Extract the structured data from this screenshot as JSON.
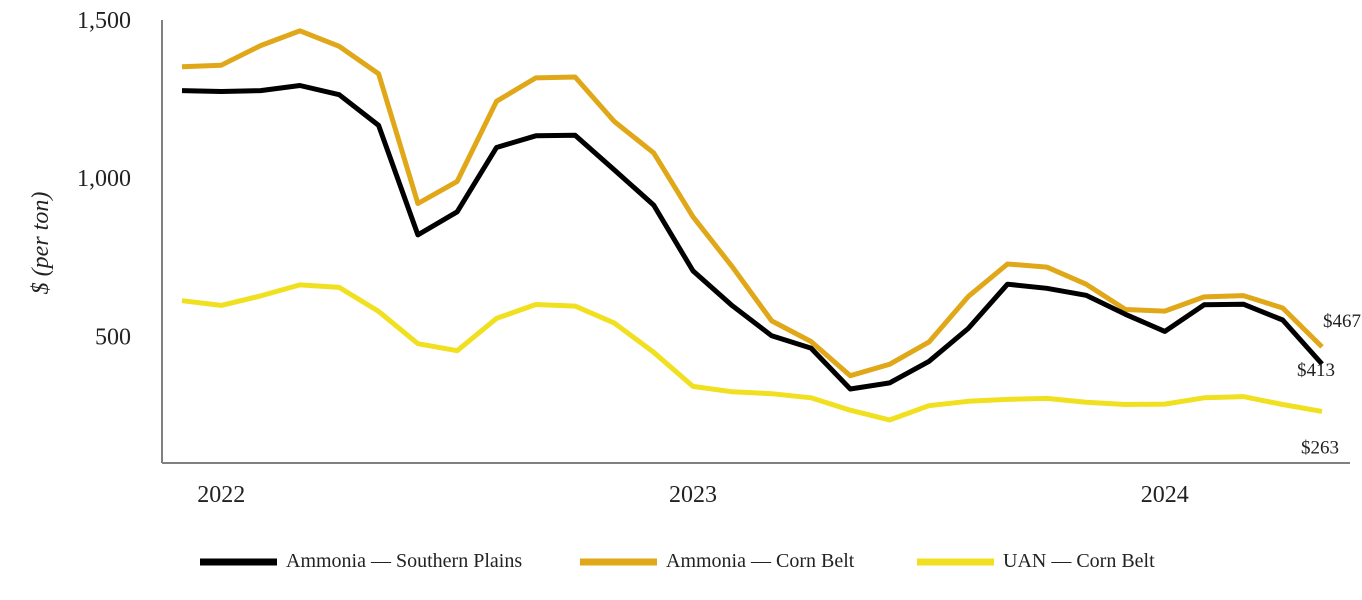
{
  "chart_data": {
    "type": "line",
    "title": "",
    "xlabel": "",
    "ylabel": "$ (per ton)",
    "ylim": [
      100,
      1500
    ],
    "y_ticks": [
      {
        "value": 500,
        "label": "500"
      },
      {
        "value": 1000,
        "label": "1,000"
      },
      {
        "value": 1500,
        "label": "1,500"
      }
    ],
    "x_ticks": [
      {
        "index": 1,
        "label": "2022"
      },
      {
        "index": 13,
        "label": "2023"
      },
      {
        "index": 25,
        "label": "2024"
      }
    ],
    "legend_position": "bottom",
    "series": [
      {
        "name": "Ammonia — Southern Plains",
        "color": "#000000",
        "values": [
          1277,
          1274,
          1277,
          1293,
          1264,
          1167,
          821,
          894,
          1097,
          1134,
          1136,
          1026,
          915,
          707,
          597,
          502,
          463,
          334,
          353,
          421,
          525,
          665,
          652,
          630,
          570,
          516,
          600,
          602,
          552,
          413
        ],
        "end_label": "$413"
      },
      {
        "name": "Ammonia — Corn Belt",
        "color": "#E0A818",
        "values": [
          1352,
          1357,
          1419,
          1466,
          1417,
          1330,
          920,
          990,
          1243,
          1317,
          1320,
          1179,
          1080,
          878,
          720,
          549,
          484,
          376,
          412,
          482,
          626,
          729,
          719,
          665,
          585,
          580,
          625,
          629,
          590,
          467
        ],
        "end_label": "$467"
      },
      {
        "name": "UAN — Corn Belt",
        "color": "#F0E020",
        "values": [
          613,
          598,
          628,
          663,
          655,
          579,
          477,
          455,
          557,
          601,
          596,
          542,
          450,
          342,
          325,
          319,
          306,
          267,
          236,
          281,
          295,
          301,
          304,
          292,
          285,
          286,
          306,
          310,
          285,
          263
        ],
        "end_label": "$263"
      }
    ]
  }
}
